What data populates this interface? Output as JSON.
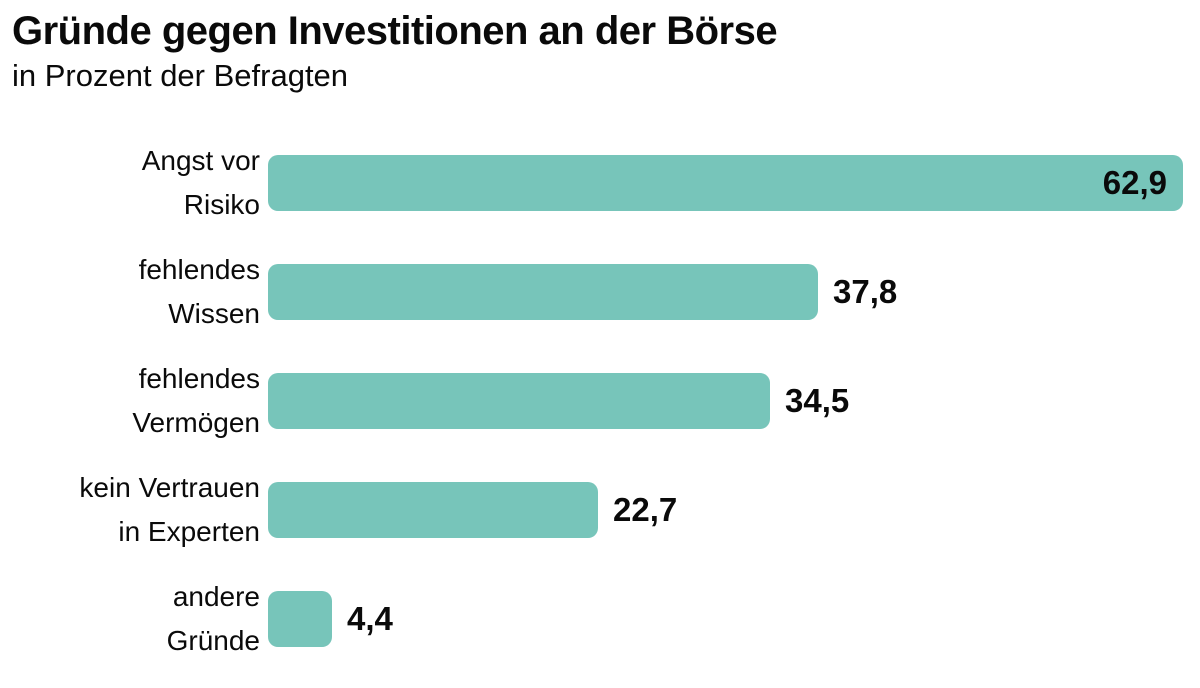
{
  "chart_data": {
    "type": "bar",
    "orientation": "horizontal",
    "title": "Gründe gegen Investitionen an der Börse",
    "subtitle": "in Prozent der Befragten",
    "categories": [
      "Angst vor\nRisiko",
      "fehlendes\nWissen",
      "fehlendes\nVermögen",
      "kein Vertrauen\nin Experten",
      "andere\nGründe"
    ],
    "values": [
      62.9,
      37.8,
      34.5,
      22.7,
      4.4
    ],
    "value_labels": [
      "62,9",
      "37,8",
      "34,5",
      "22,7",
      "4,4"
    ],
    "label_positions": [
      "inside",
      "outside",
      "outside",
      "outside",
      "outside"
    ],
    "xlim": [
      0,
      62.9
    ],
    "grid": false,
    "legend": false,
    "bar_color": "#77c5ba",
    "text_color": "#0a0a0a",
    "background_color": "#ffffff"
  }
}
